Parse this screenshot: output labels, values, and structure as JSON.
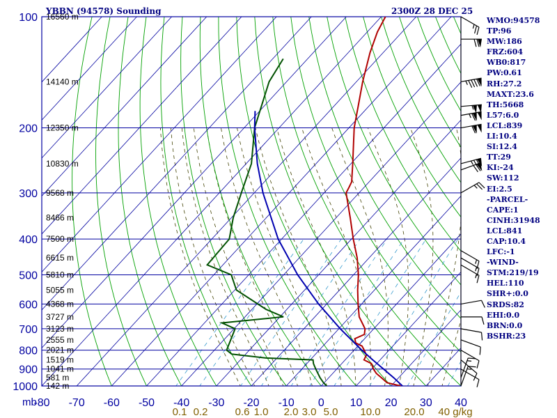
{
  "header": {
    "station": "YBBN (94578) Sounding",
    "datetime": "2300Z 28 DEC 25"
  },
  "indices": [
    "WMO:94578",
    "TP:96",
    "MW:186",
    "FRZ:604",
    "WB0:817",
    "PW:0.61",
    "RH:27.2",
    "MAXT:23.6",
    "TH:5668",
    "L57:6.0",
    "LCL:839",
    "LI:10.4",
    "SI:12.4",
    "TT:29",
    "KI:-24",
    "SW:112",
    "EI:2.5",
    "-PARCEL-",
    "CAPE:1",
    "CINH:31948",
    "LCL:841",
    "CAP:10.4",
    "LFC:-1",
    "-WIND-",
    "STM:219/19",
    "HEL:110",
    "SHR+:0.0",
    "SRDS:82",
    "EHI:0.0",
    "BRN:0.0",
    "BSHR:23"
  ],
  "colors": {
    "background": "#ffffff",
    "frame": "#0000a0",
    "isobar": "#0000a0",
    "isotherm": "#0000a0",
    "dry_adiabat": "#00a000",
    "moist_adiabat": "#404000",
    "mixing_ratio": "#3399cc",
    "temperature": "#b00000",
    "dewpoint": "#005000",
    "parcel": "#0000b0",
    "wind_barb": "#000000",
    "axis_text": "#0000a0",
    "mixing_text": "#806000",
    "height_text": "#000000",
    "header_text": "#000080"
  },
  "chart_data": {
    "type": "skew-t",
    "title": "YBBN (94578) Sounding",
    "pressure_axis": {
      "unit": "mb",
      "scale": "log",
      "range": [
        1000,
        100
      ],
      "ticks": [
        100,
        200,
        300,
        400,
        500,
        600,
        700,
        800,
        900,
        1000
      ],
      "tick_labels": [
        "100",
        "200",
        "300",
        "400",
        "500",
        "600",
        "700",
        "800",
        "900",
        "1000"
      ]
    },
    "temperature_axis": {
      "unit": "C",
      "range": [
        -80,
        40
      ],
      "ticks": [
        -80,
        -70,
        -60,
        -50,
        -40,
        -30,
        -20,
        -10,
        0,
        10,
        20,
        30,
        40
      ],
      "tick_labels": [
        "-80",
        "-70",
        "-60",
        "-50",
        "-40",
        "-30",
        "-20",
        "-10",
        "0",
        "10",
        "20",
        "30",
        "40"
      ],
      "unit_label": "mb"
    },
    "height_labels": [
      {
        "p": 100,
        "label": "16560 m"
      },
      {
        "p": 150,
        "label": "14140 m"
      },
      {
        "p": 200,
        "label": "12350 m"
      },
      {
        "p": 250,
        "label": "10830 m"
      },
      {
        "p": 300,
        "label": "9568 m"
      },
      {
        "p": 350,
        "label": "8466 m"
      },
      {
        "p": 400,
        "label": "7500 m"
      },
      {
        "p": 450,
        "label": "6615 m"
      },
      {
        "p": 500,
        "label": "5810 m"
      },
      {
        "p": 550,
        "label": "5055 m"
      },
      {
        "p": 600,
        "label": "4368 m"
      },
      {
        "p": 650,
        "label": "3727 m"
      },
      {
        "p": 700,
        "label": "3123 m"
      },
      {
        "p": 750,
        "label": "2555 m"
      },
      {
        "p": 800,
        "label": "2021 m"
      },
      {
        "p": 850,
        "label": "1519 m"
      },
      {
        "p": 900,
        "label": "1041 m"
      },
      {
        "p": 950,
        "label": "581 m"
      },
      {
        "p": 1000,
        "label": "142 m"
      }
    ],
    "mixing_ratio_labels": [
      "0.1",
      "0.2",
      "0.6",
      "1.0",
      "2.0",
      "3.0",
      "5.0",
      "10.0",
      "20.0",
      "40 g/kg"
    ],
    "series": [
      {
        "name": "temperature",
        "points": [
          [
            1004,
            23.6
          ],
          [
            980,
            18.0
          ],
          [
            950,
            15.1
          ],
          [
            925,
            12.5
          ],
          [
            900,
            10.5
          ],
          [
            870,
            8.5
          ],
          [
            850,
            5.4
          ],
          [
            825,
            4.8
          ],
          [
            800,
            2.9
          ],
          [
            780,
            1.2
          ],
          [
            765,
            -1.4
          ],
          [
            745,
            -2.8
          ],
          [
            725,
            -1.2
          ],
          [
            700,
            -2.5
          ],
          [
            650,
            -7.3
          ],
          [
            600,
            -11.0
          ],
          [
            550,
            -14.8
          ],
          [
            500,
            -18.6
          ],
          [
            450,
            -23.4
          ],
          [
            400,
            -29.5
          ],
          [
            350,
            -36.0
          ],
          [
            300,
            -43.7
          ],
          [
            290,
            -44.3
          ],
          [
            280,
            -45.0
          ],
          [
            250,
            -49.5
          ],
          [
            200,
            -58.5
          ],
          [
            175,
            -63.0
          ],
          [
            150,
            -68.2
          ],
          [
            125,
            -73.8
          ],
          [
            110,
            -77.1
          ],
          [
            100,
            -78.8
          ]
        ]
      },
      {
        "name": "dewpoint",
        "points": [
          [
            1004,
            1.9
          ],
          [
            980,
            -0.2
          ],
          [
            950,
            -2.5
          ],
          [
            900,
            -6.0
          ],
          [
            870,
            -8.1
          ],
          [
            850,
            -9.2
          ],
          [
            840,
            -23.1
          ],
          [
            820,
            -34.0
          ],
          [
            800,
            -36.5
          ],
          [
            700,
            -39.7
          ],
          [
            675,
            -45.0
          ],
          [
            650,
            -29.0
          ],
          [
            620,
            -36.0
          ],
          [
            550,
            -49.5
          ],
          [
            500,
            -55.0
          ],
          [
            470,
            -64.5
          ],
          [
            400,
            -65.0
          ],
          [
            350,
            -69.5
          ],
          [
            300,
            -73.7
          ],
          [
            250,
            -78.5
          ],
          [
            200,
            -87.0
          ],
          [
            150,
            -95.0
          ],
          [
            130,
            -97.0
          ]
        ]
      },
      {
        "name": "parcel",
        "points": [
          [
            1004,
            23.6
          ],
          [
            950,
            18.6
          ],
          [
            900,
            13.4
          ],
          [
            850,
            7.9
          ],
          [
            800,
            2.2
          ],
          [
            700,
            -9.6
          ],
          [
            600,
            -22.3
          ],
          [
            500,
            -36.0
          ],
          [
            400,
            -51.0
          ],
          [
            300,
            -67.5
          ],
          [
            250,
            -76.8
          ],
          [
            200,
            -87.0
          ],
          [
            180,
            -91.3
          ]
        ]
      }
    ],
    "wind_barbs": [
      {
        "p": 100,
        "dir": 300,
        "spd": 25
      },
      {
        "p": 115,
        "dir": 270,
        "spd": 70
      },
      {
        "p": 150,
        "dir": 260,
        "spd": 95
      },
      {
        "p": 175,
        "dir": 265,
        "spd": 105
      },
      {
        "p": 185,
        "dir": 260,
        "spd": 115
      },
      {
        "p": 200,
        "dir": 260,
        "spd": 110
      },
      {
        "p": 250,
        "dir": 255,
        "spd": 75
      },
      {
        "p": 260,
        "dir": 250,
        "spd": 70
      },
      {
        "p": 300,
        "dir": 240,
        "spd": 25
      },
      {
        "p": 430,
        "dir": 300,
        "spd": 15
      },
      {
        "p": 450,
        "dir": 300,
        "spd": 15
      },
      {
        "p": 470,
        "dir": 300,
        "spd": 15
      },
      {
        "p": 600,
        "dir": 260,
        "spd": 10
      },
      {
        "p": 650,
        "dir": 270,
        "spd": 10
      },
      {
        "p": 700,
        "dir": 280,
        "spd": 10
      },
      {
        "p": 750,
        "dir": 290,
        "spd": 10
      },
      {
        "p": 800,
        "dir": 300,
        "spd": 10
      },
      {
        "p": 850,
        "dir": 310,
        "spd": 10
      },
      {
        "p": 900,
        "dir": 300,
        "spd": 10
      },
      {
        "p": 950,
        "dir": 200,
        "spd": 15
      },
      {
        "p": 1000,
        "dir": 200,
        "spd": 15
      }
    ]
  }
}
